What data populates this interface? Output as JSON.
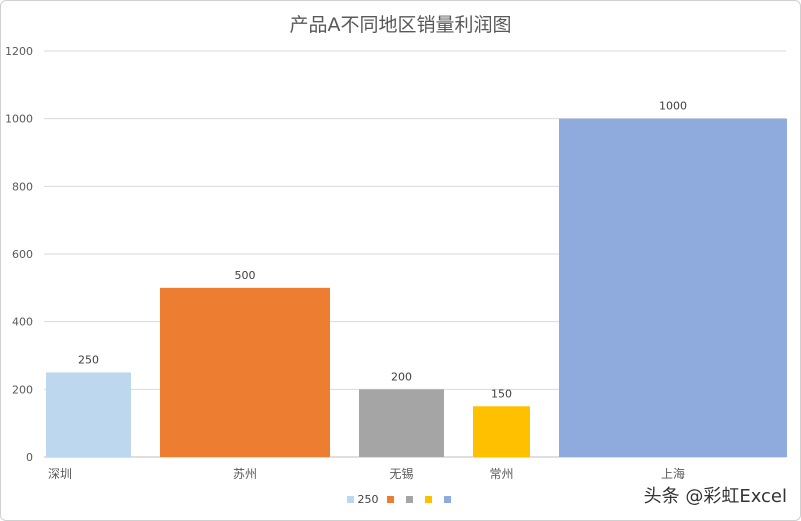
{
  "chart_data": {
    "type": "bar",
    "title": "产品A不同地区销量利润图",
    "xlabel": "",
    "ylabel": "",
    "categories": [
      "深圳",
      "苏州",
      "无锡",
      "常州",
      "上海"
    ],
    "values": [
      250,
      500,
      200,
      150,
      1000
    ],
    "colors": [
      "#bdd7ee",
      "#ed7d31",
      "#a5a5a5",
      "#ffc000",
      "#8faadc"
    ],
    "ylim": [
      0,
      1200
    ],
    "yticks": [
      "0",
      "200",
      "400",
      "600",
      "800",
      "1000",
      "1200"
    ],
    "data_labels": [
      "250",
      "500",
      "200",
      "150",
      "1000"
    ],
    "grid": true,
    "legend_position": "bottom",
    "legend": [
      {
        "label": "250",
        "color": "#bdd7ee"
      },
      {
        "label": "",
        "color": "#ed7d31"
      },
      {
        "label": "",
        "color": "#a5a5a5"
      },
      {
        "label": "",
        "color": "#ffc000"
      },
      {
        "label": "",
        "color": "#8faadc"
      }
    ]
  },
  "watermark": "头条 @彩虹Excel"
}
